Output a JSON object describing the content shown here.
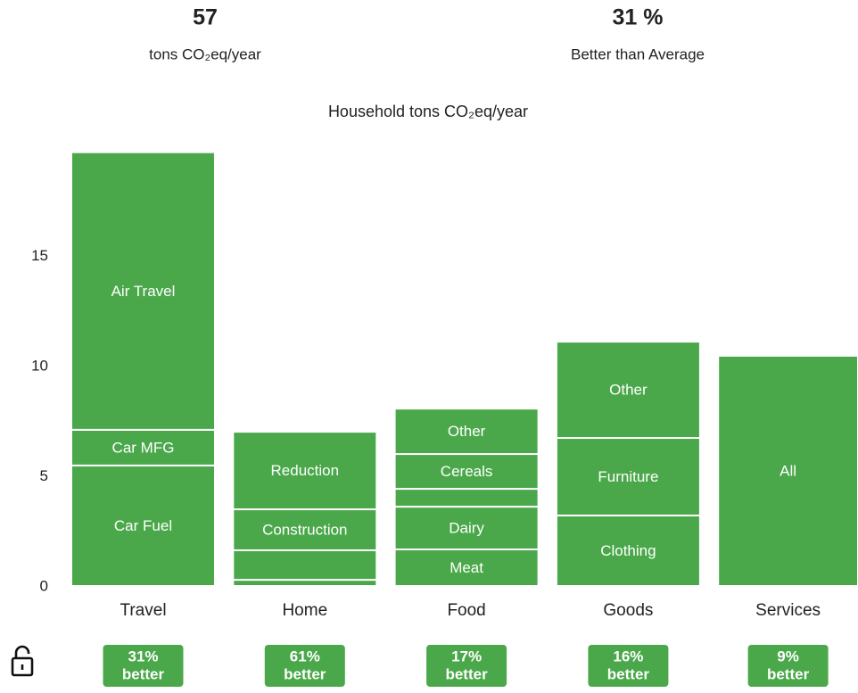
{
  "summary": [
    {
      "value": "57",
      "label": "tons CO₂eq/year"
    },
    {
      "value": "31 %",
      "label": "Better than Average"
    }
  ],
  "chart_data": {
    "type": "stacked_bar",
    "title": "Household tons CO₂eq/year",
    "color": "#4aa84a",
    "ylim": [
      0,
      20
    ],
    "yticks": [
      0,
      5,
      10,
      15
    ],
    "categories": [
      {
        "name": "Travel",
        "segments": [
          {
            "name": "Car Fuel",
            "value": 5.47
          },
          {
            "name": "Car MFG",
            "value": 1.62
          },
          {
            "name": "Air Travel",
            "value": 12.6
          }
        ]
      },
      {
        "name": "Home",
        "segments": [
          {
            "name": null,
            "value": 0.28
          },
          {
            "name": null,
            "value": 1.34
          },
          {
            "name": "Construction",
            "value": 1.86
          },
          {
            "name": "Reduction",
            "value": 3.52
          }
        ]
      },
      {
        "name": "Food",
        "segments": [
          {
            "name": "Meat",
            "value": 1.66
          },
          {
            "name": "Dairy",
            "value": 1.94
          },
          {
            "name": null,
            "value": 0.81
          },
          {
            "name": "Cereals",
            "value": 1.58
          },
          {
            "name": "Other",
            "value": 2.06
          }
        ]
      },
      {
        "name": "Goods",
        "segments": [
          {
            "name": "Clothing",
            "value": 3.2
          },
          {
            "name": "Furniture",
            "value": 3.52
          },
          {
            "name": "Other",
            "value": 4.37
          }
        ]
      },
      {
        "name": "Services",
        "segments": [
          {
            "name": "All",
            "value": 10.45
          }
        ]
      }
    ],
    "badges": [
      {
        "percent": "31%",
        "word": "better"
      },
      {
        "percent": "61%",
        "word": "better"
      },
      {
        "percent": "17%",
        "word": "better"
      },
      {
        "percent": "16%",
        "word": "better"
      },
      {
        "percent": "9%",
        "word": "better"
      }
    ]
  }
}
